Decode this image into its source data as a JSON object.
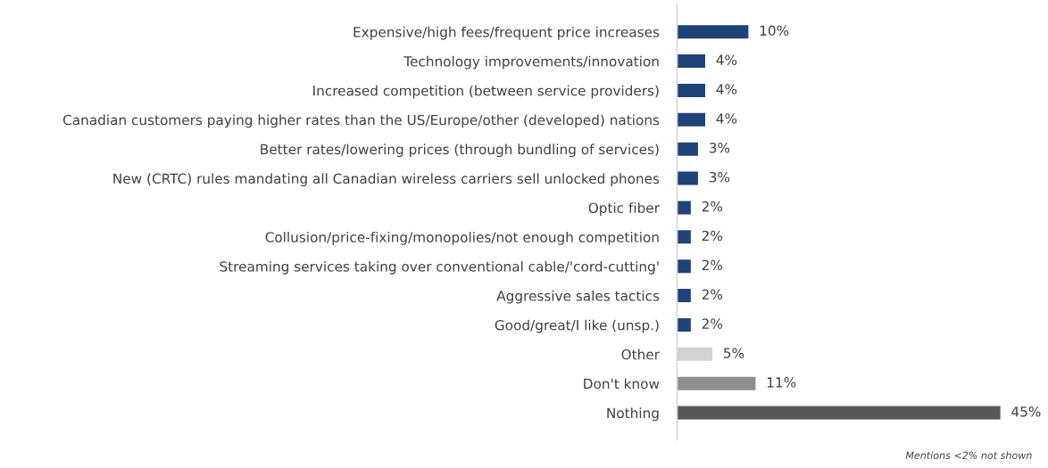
{
  "chart_data": {
    "type": "bar",
    "orientation": "horizontal",
    "categories": [
      "Expensive/high fees/frequent price increases",
      "Technology improvements/innovation",
      "Increased competition (between service providers)",
      "Canadian customers paying higher rates than the US/Europe/other (developed) nations",
      "Better rates/lowering prices (through bundling of services)",
      "New (CRTC) rules mandating all Canadian wireless carriers sell unlocked phones",
      "Optic fiber",
      "Collusion/price-fixing/monopolies/not enough competition",
      "Streaming services taking over conventional cable/'cord-cutting'",
      "Aggressive sales tactics",
      "Good/great/I like (unsp.)",
      "Other",
      "Don't know",
      "Nothing"
    ],
    "values": [
      10,
      4,
      4,
      4,
      3,
      3,
      2,
      2,
      2,
      2,
      2,
      5,
      11,
      45
    ],
    "value_labels": [
      "10%",
      "4%",
      "4%",
      "4%",
      "3%",
      "3%",
      "2%",
      "2%",
      "2%",
      "2%",
      "2%",
      "5%",
      "11%",
      "45%"
    ],
    "colors": [
      "#1f4279",
      "#1f4279",
      "#1f4279",
      "#1f4279",
      "#1f4279",
      "#1f4279",
      "#1f4279",
      "#1f4279",
      "#1f4279",
      "#1f4279",
      "#1f4279",
      "#d2d2d2",
      "#8e8e8e",
      "#575757"
    ],
    "annotations": [
      "Mentions <2% not shown"
    ],
    "grid": false,
    "legend": false
  }
}
